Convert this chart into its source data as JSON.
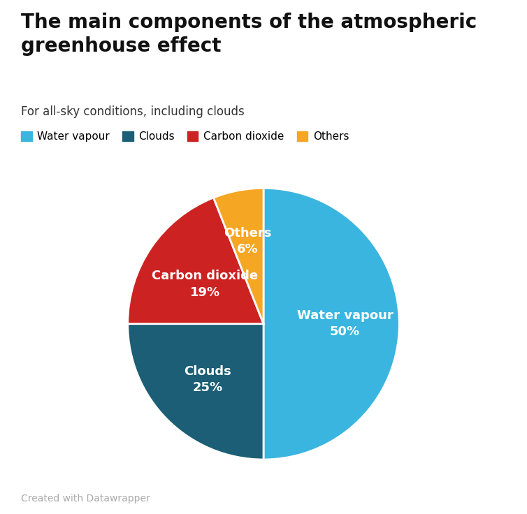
{
  "title": "The main components of the atmospheric\ngreenhouse effect",
  "subtitle": "For all-sky conditions, including clouds",
  "labels": [
    "Water vapour",
    "Clouds",
    "Carbon dioxide",
    "Others"
  ],
  "values": [
    50,
    25,
    19,
    6
  ],
  "colors": [
    "#3ab5e0",
    "#1b5e75",
    "#cc2222",
    "#f5a623"
  ],
  "startangle": 90,
  "background_color": "#ffffff",
  "footer": "Created with Datawrapper",
  "legend_labels": [
    "Water vapour",
    "Clouds",
    "Carbon dioxide",
    "Others"
  ],
  "legend_colors": [
    "#3ab5e0",
    "#1b5e75",
    "#cc2222",
    "#f5a623"
  ],
  "title_fontsize": 20,
  "subtitle_fontsize": 12,
  "label_fontsize": 13,
  "legend_fontsize": 11,
  "footer_fontsize": 10,
  "footer_color": "#aaaaaa",
  "label_radii": [
    0.6,
    0.58,
    0.52,
    0.62
  ]
}
